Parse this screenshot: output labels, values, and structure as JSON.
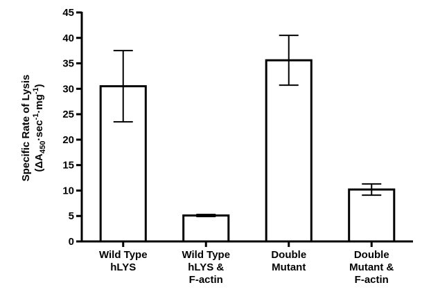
{
  "chart_data": {
    "type": "bar",
    "categories": [
      [
        "Wild Type",
        "hLYS"
      ],
      [
        "Wild Type",
        "hLYS &",
        "F-actin"
      ],
      [
        "Double",
        "Mutant"
      ],
      [
        "Double",
        "Mutant &",
        "F-actin"
      ]
    ],
    "values": [
      30.5,
      5.1,
      35.6,
      10.2
    ],
    "error": [
      7.0,
      0.2,
      4.9,
      1.1
    ],
    "ylabel_line1": "Specific Rate of Lysis",
    "ylabel_line2": {
      "pre": "(ΔA",
      "sub": "450",
      "mid": "·sec",
      "sup1": "-1",
      "mid2": "·mg",
      "sup2": "-1",
      "post": ")"
    },
    "ylim": [
      0,
      45
    ],
    "yticks": [
      "0",
      "5",
      "10",
      "15",
      "20",
      "25",
      "30",
      "35",
      "40",
      "45"
    ],
    "grid": false,
    "bar_fill": "#ffffff",
    "bar_stroke": "#000000"
  }
}
